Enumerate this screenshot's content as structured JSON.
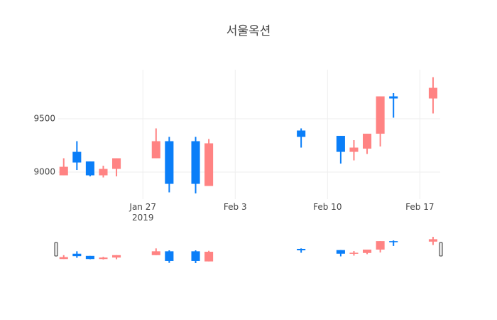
{
  "chart_data": {
    "type": "candlestick",
    "title": "서울옥션",
    "x": [
      "2019-01-21",
      "2019-01-22",
      "2019-01-23",
      "2019-01-24",
      "2019-01-25",
      "2019-01-28",
      "2019-01-29",
      "2019-01-31",
      "2019-02-01",
      "2019-02-08",
      "2019-02-11",
      "2019-02-12",
      "2019-02-13",
      "2019-02-14",
      "2019-02-15",
      "2019-02-18"
    ],
    "open": [
      8970,
      9190,
      9100,
      8970,
      9030,
      9130,
      9290,
      9290,
      8870,
      9390,
      9340,
      9190,
      9220,
      9360,
      9710,
      9690
    ],
    "high": [
      9130,
      9290,
      9100,
      9060,
      9130,
      9410,
      9330,
      9330,
      9310,
      9410,
      9340,
      9300,
      9360,
      9710,
      9740,
      9890
    ],
    "low": [
      8970,
      9020,
      8960,
      8950,
      8960,
      9130,
      8810,
      8800,
      8870,
      9230,
      9080,
      9110,
      9170,
      9240,
      9510,
      9550
    ],
    "close": [
      9050,
      9090,
      8970,
      9030,
      9130,
      9290,
      8890,
      8890,
      9270,
      9330,
      9190,
      9230,
      9360,
      9710,
      9690,
      9790
    ],
    "increasing_color": "#ff8383",
    "decreasing_color": "#0a7ef8",
    "xlim": [
      "2019-01-20T14:00:00Z",
      "2019-02-18T13:00:00Z"
    ],
    "xticks": [
      {
        "value": "2019-01-27",
        "label": "Jan 27\n2019"
      },
      {
        "value": "2019-02-03",
        "label": "Feb 3"
      },
      {
        "value": "2019-02-10",
        "label": "Feb 10"
      },
      {
        "value": "2019-02-17",
        "label": "Feb 17"
      }
    ],
    "ylim": [
      8747,
      9960
    ],
    "yticks": [
      9000,
      9500
    ],
    "grid": true,
    "range_slider": true
  }
}
